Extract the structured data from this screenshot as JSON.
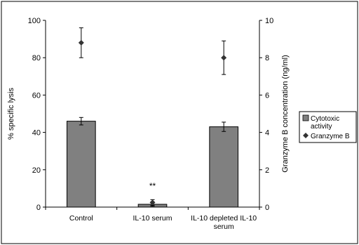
{
  "chart_data": {
    "type": "bar",
    "categories": [
      "Control",
      "IL-10 serum",
      "IL-10 depleted IL-10 serum"
    ],
    "category_label_lines": [
      [
        "Control"
      ],
      [
        "IL-10 serum"
      ],
      [
        "IL-10 depleted IL-10",
        "serum"
      ]
    ],
    "left_axis": {
      "label": "% specific lysis",
      "ylim": [
        0,
        100
      ],
      "ticks": [
        "0",
        "20",
        "40",
        "60",
        "80",
        "100"
      ]
    },
    "right_axis": {
      "label": "Granzyme B concentration (ng/ml)",
      "ylim": [
        0,
        10
      ],
      "ticks": [
        "0",
        "2",
        "4",
        "6",
        "8",
        "10"
      ]
    },
    "series": [
      {
        "name": "Cytotoxic activity",
        "kind": "bar",
        "axis": "left",
        "values": [
          46,
          1.5,
          43
        ],
        "error": [
          2,
          1,
          2.5
        ],
        "color": "#808080"
      },
      {
        "name": "Granzyme B",
        "kind": "marker",
        "axis": "right",
        "values": [
          8.8,
          0.25,
          8.0
        ],
        "error": [
          0.8,
          0.15,
          0.9
        ],
        "color": "#333333"
      }
    ],
    "annotations": [
      {
        "category_index": 1,
        "text": "**"
      }
    ],
    "legend": {
      "position": "right",
      "entries": [
        {
          "series_index": 0,
          "lines": [
            "Cytotoxic",
            "activity"
          ]
        },
        {
          "series_index": 1,
          "lines": [
            "Granzyme B"
          ]
        }
      ]
    },
    "grid": false
  }
}
